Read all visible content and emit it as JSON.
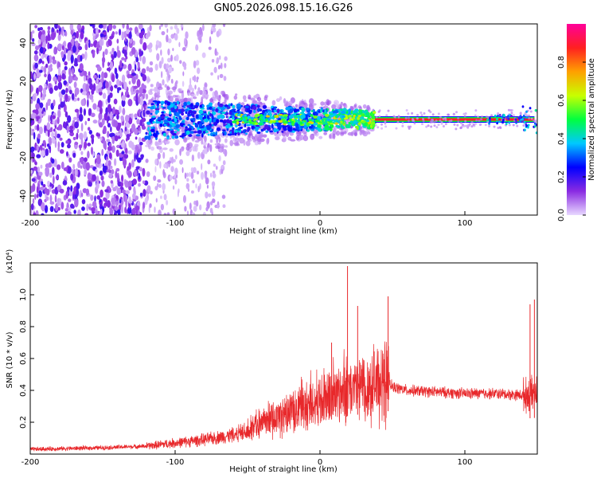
{
  "chart_data": [
    {
      "type": "heatmap",
      "title": "GN05.2026.098.15.16.G26",
      "xlabel": "Height of straight line (km)",
      "ylabel": "Frequency (Hz)",
      "xlim": [
        -200,
        150
      ],
      "ylim": [
        -50,
        50
      ],
      "xticks": [
        -200,
        -100,
        0,
        100
      ],
      "yticks": [
        -40,
        -20,
        0,
        20,
        40
      ],
      "colorbar": {
        "label": "Normalized spectral amplitude",
        "range": [
          0,
          1
        ],
        "ticks": [
          "0.0",
          "0.2",
          "0.4",
          "0.6",
          "0.8"
        ],
        "colormap": [
          "#e8d8ff",
          "#8a2be2",
          "#0000ff",
          "#00c8ff",
          "#00ff40",
          "#c8ff00",
          "#ffa000",
          "#ff2020",
          "#ff0099"
        ]
      },
      "features": {
        "scatter_region_km": [
          -200,
          -120
        ],
        "noise_fade_region_km": [
          -120,
          -65
        ],
        "line_center_freq_hz": 0,
        "strong_line_start_km": 38,
        "strong_line_end_km": 148
      }
    },
    {
      "type": "line",
      "xlabel": "Height of straight line (km)",
      "ylabel": "SNR (10 * v/v)",
      "y_multiplier": "(x10⁴)",
      "xlim": [
        -200,
        150
      ],
      "ylim": [
        0,
        1.2
      ],
      "xticks": [
        -200,
        -100,
        0,
        100
      ],
      "yticks": [
        0.2,
        0.4,
        0.6,
        0.8,
        1.0
      ],
      "color": "#e8282b",
      "envelope_x": [
        -200,
        -150,
        -120,
        -100,
        -80,
        -60,
        -40,
        -20,
        -10,
        0,
        10,
        20,
        30,
        40,
        48,
        50,
        60,
        80,
        100,
        120,
        140,
        150
      ],
      "envelope_y": [
        0.03,
        0.04,
        0.05,
        0.07,
        0.09,
        0.12,
        0.18,
        0.26,
        0.3,
        0.33,
        0.37,
        0.4,
        0.42,
        0.44,
        0.45,
        0.42,
        0.4,
        0.39,
        0.38,
        0.38,
        0.37,
        0.38
      ],
      "spikes": [
        {
          "x": 8,
          "y": 0.7
        },
        {
          "x": 19,
          "y": 1.18
        },
        {
          "x": 26,
          "y": 0.93
        },
        {
          "x": 47,
          "y": 0.99
        },
        {
          "x": 145,
          "y": 0.94
        },
        {
          "x": 148,
          "y": 0.97
        }
      ]
    }
  ]
}
